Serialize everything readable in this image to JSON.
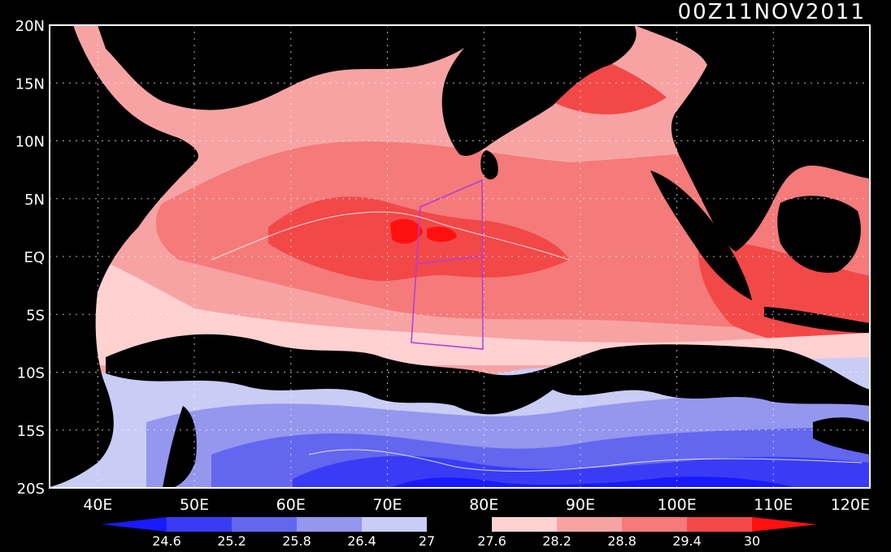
{
  "map": {
    "timestamp": "00Z11NOV2011",
    "lon_labels": [
      "40E",
      "50E",
      "60E",
      "70E",
      "80E",
      "90E",
      "100E",
      "110E",
      "120E"
    ],
    "lat_labels": [
      "20N",
      "15N",
      "10N",
      "5N",
      "EQ",
      "5S",
      "10S",
      "15S",
      "20S"
    ],
    "lon_range": [
      35,
      120
    ],
    "lat_range": [
      -20,
      20
    ],
    "grid": true,
    "land_color": "#000000",
    "frame_color": "#ffffff",
    "box_color": "#b23bd6",
    "contour_color": "#ffffff"
  },
  "colorbar": {
    "values": [
      "24.6",
      "25.2",
      "25.8",
      "26.4",
      "27",
      "27.6",
      "28.2",
      "28.8",
      "29.4",
      "30"
    ],
    "colors": [
      "#1a1aff",
      "#3a3cf5",
      "#6366ef",
      "#9596ee",
      "#c9ccf5",
      "#000000",
      "#ffd1d1",
      "#f7a3a3",
      "#f57a7a",
      "#f24848",
      "#ff1010"
    ]
  }
}
